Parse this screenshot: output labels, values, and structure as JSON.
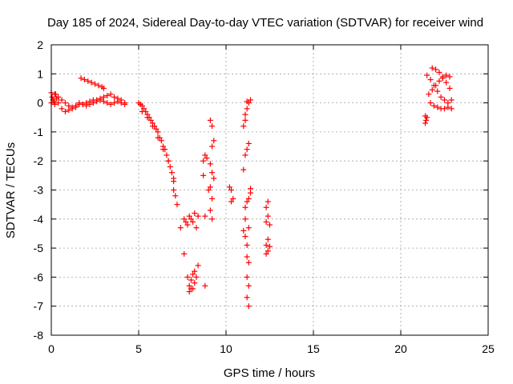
{
  "chart_data": {
    "type": "scatter",
    "title": "Day 185 of 2024, Sidereal Day-to-day VTEC variation (SDTVAR) for receiver wind",
    "xlabel": "GPS time / hours",
    "ylabel": "SDTVAR / TECUs",
    "xlim": [
      0,
      25
    ],
    "ylim": [
      -8,
      2
    ],
    "xticks": [
      "0",
      "5",
      "10",
      "15",
      "20",
      "25"
    ],
    "yticks": [
      "2",
      "1",
      "0",
      "-1",
      "-2",
      "-3",
      "-4",
      "-5",
      "-6",
      "-7",
      "-8"
    ],
    "marker": "+",
    "color": "#ff0000",
    "grid": true,
    "segments": [
      {
        "name": "early-upper",
        "points": [
          [
            0.0,
            0.35
          ],
          [
            0.2,
            0.3
          ],
          [
            0.4,
            0.2
          ],
          [
            0.6,
            0.1
          ],
          [
            0.8,
            0.0
          ],
          [
            1.0,
            -0.1
          ],
          [
            1.2,
            -0.15
          ],
          [
            1.4,
            -0.1
          ],
          [
            1.6,
            0.0
          ],
          [
            1.8,
            -0.05
          ],
          [
            2.0,
            0.0
          ],
          [
            2.2,
            0.05
          ],
          [
            2.4,
            0.1
          ],
          [
            2.6,
            0.1
          ],
          [
            2.8,
            0.15
          ],
          [
            3.0,
            0.2
          ],
          [
            3.2,
            0.25
          ],
          [
            3.4,
            0.3
          ],
          [
            3.6,
            0.2
          ],
          [
            3.8,
            0.15
          ],
          [
            4.0,
            0.1
          ],
          [
            4.2,
            0.0
          ]
        ]
      },
      {
        "name": "early-lower",
        "points": [
          [
            0.0,
            0.0
          ],
          [
            0.2,
            -0.05
          ],
          [
            0.4,
            0.0
          ],
          [
            0.6,
            -0.2
          ],
          [
            0.8,
            -0.3
          ],
          [
            1.0,
            -0.25
          ],
          [
            1.2,
            -0.2
          ],
          [
            1.4,
            -0.15
          ],
          [
            1.6,
            -0.05
          ],
          [
            1.8,
            -0.05
          ],
          [
            2.0,
            -0.1
          ],
          [
            2.2,
            -0.05
          ],
          [
            2.4,
            0.0
          ],
          [
            2.6,
            0.05
          ],
          [
            2.8,
            0.1
          ],
          [
            3.0,
            0.05
          ],
          [
            3.2,
            0.0
          ],
          [
            3.4,
            -0.05
          ],
          [
            3.6,
            0.0
          ],
          [
            3.8,
            0.05
          ],
          [
            4.0,
            0.0
          ],
          [
            4.2,
            -0.05
          ]
        ]
      },
      {
        "name": "early-small",
        "points": [
          [
            0.05,
            0.2
          ],
          [
            0.1,
            0.1
          ],
          [
            0.15,
            0.05
          ],
          [
            0.25,
            0.3
          ],
          [
            0.3,
            0.15
          ]
        ]
      },
      {
        "name": "morning-arc",
        "points": [
          [
            1.7,
            0.85
          ],
          [
            1.9,
            0.8
          ],
          [
            2.1,
            0.75
          ],
          [
            2.3,
            0.7
          ],
          [
            2.5,
            0.65
          ],
          [
            2.7,
            0.6
          ],
          [
            2.9,
            0.55
          ],
          [
            3.0,
            0.5
          ]
        ]
      },
      {
        "name": "descent-main",
        "points": [
          [
            5.0,
            0.0
          ],
          [
            5.2,
            -0.1
          ],
          [
            5.4,
            -0.3
          ],
          [
            5.6,
            -0.5
          ],
          [
            5.8,
            -0.7
          ],
          [
            6.0,
            -0.9
          ],
          [
            6.2,
            -1.2
          ],
          [
            6.4,
            -1.5
          ],
          [
            6.6,
            -1.8
          ],
          [
            6.8,
            -2.2
          ],
          [
            7.0,
            -2.7
          ],
          [
            7.2,
            -3.5
          ],
          [
            7.4,
            -4.3
          ],
          [
            7.6,
            -5.2
          ],
          [
            7.8,
            -6.0
          ],
          [
            8.0,
            -6.4
          ]
        ]
      },
      {
        "name": "descent-offset",
        "points": [
          [
            5.1,
            -0.05
          ],
          [
            5.3,
            -0.2
          ],
          [
            5.5,
            -0.4
          ],
          [
            5.7,
            -0.6
          ],
          [
            5.9,
            -0.8
          ],
          [
            6.1,
            -1.0
          ],
          [
            6.3,
            -1.3
          ],
          [
            6.5,
            -1.6
          ],
          [
            6.7,
            -2.0
          ],
          [
            6.9,
            -2.4
          ],
          [
            7.0,
            -3.0
          ],
          [
            7.1,
            -3.2
          ]
        ]
      },
      {
        "name": "descent-upper",
        "points": [
          [
            5.2,
            -0.3
          ],
          [
            5.5,
            -0.5
          ],
          [
            5.8,
            -0.8
          ],
          [
            6.1,
            -1.2
          ],
          [
            6.4,
            -1.6
          ],
          [
            6.7,
            -2.0
          ],
          [
            7.0,
            -2.6
          ]
        ]
      },
      {
        "name": "bottom-cluster",
        "points": [
          [
            7.6,
            -4.0
          ],
          [
            7.8,
            -4.2
          ],
          [
            8.0,
            -4.0
          ],
          [
            8.2,
            -3.8
          ],
          [
            8.4,
            -3.9
          ],
          [
            7.7,
            -4.1
          ],
          [
            7.9,
            -3.9
          ],
          [
            8.1,
            -4.1
          ],
          [
            8.3,
            -4.3
          ],
          [
            7.9,
            -6.3
          ],
          [
            8.0,
            -6.1
          ],
          [
            8.2,
            -5.8
          ],
          [
            8.4,
            -5.6
          ],
          [
            8.3,
            -6.0
          ],
          [
            8.1,
            -6.4
          ],
          [
            7.9,
            -6.5
          ],
          [
            8.1,
            -5.9
          ],
          [
            8.2,
            -6.2
          ]
        ]
      },
      {
        "name": "late-spikes",
        "points": [
          [
            8.8,
            -1.8
          ],
          [
            8.9,
            -1.9
          ],
          [
            8.7,
            -2.0
          ],
          [
            8.7,
            -2.5
          ],
          [
            9.0,
            -3.0
          ],
          [
            9.1,
            -3.7
          ],
          [
            8.8,
            -3.9
          ],
          [
            8.8,
            -6.3
          ],
          [
            9.1,
            -0.6
          ],
          [
            9.2,
            -0.8
          ],
          [
            9.3,
            -1.3
          ],
          [
            9.2,
            -1.5
          ],
          [
            9.1,
            -2.1
          ],
          [
            9.2,
            -2.4
          ],
          [
            9.3,
            -2.6
          ],
          [
            9.1,
            -2.9
          ],
          [
            9.2,
            -3.3
          ],
          [
            9.2,
            -4.0
          ]
        ]
      },
      {
        "name": "mid-isolated",
        "points": [
          [
            10.2,
            -2.9
          ],
          [
            10.3,
            -3.0
          ],
          [
            10.3,
            -3.4
          ],
          [
            10.4,
            -3.3
          ]
        ]
      },
      {
        "name": "column-11",
        "points": [
          [
            11.0,
            -0.8
          ],
          [
            11.1,
            -0.4
          ],
          [
            11.2,
            -0.2
          ],
          [
            11.3,
            0.0
          ],
          [
            11.4,
            0.1
          ],
          [
            11.2,
            0.05
          ],
          [
            11.1,
            -0.6
          ],
          [
            11.3,
            -1.4
          ],
          [
            11.2,
            -1.6
          ],
          [
            11.1,
            -1.8
          ],
          [
            11.0,
            -2.3
          ],
          [
            11.1,
            -3.6
          ],
          [
            11.2,
            -3.4
          ],
          [
            11.3,
            -3.3
          ],
          [
            11.4,
            -3.1
          ],
          [
            11.4,
            -2.95
          ],
          [
            11.1,
            -4.0
          ],
          [
            11.0,
            -4.4
          ],
          [
            11.1,
            -4.6
          ],
          [
            11.2,
            -4.9
          ],
          [
            11.3,
            -4.3
          ],
          [
            11.2,
            -5.3
          ],
          [
            11.3,
            -5.5
          ],
          [
            11.2,
            -6.0
          ],
          [
            11.3,
            -6.3
          ],
          [
            11.2,
            -6.7
          ],
          [
            11.3,
            -7.0
          ]
        ]
      },
      {
        "name": "column-12",
        "points": [
          [
            12.3,
            -3.6
          ],
          [
            12.4,
            -3.4
          ],
          [
            12.4,
            -3.9
          ],
          [
            12.3,
            -4.1
          ],
          [
            12.5,
            -4.2
          ],
          [
            12.4,
            -4.7
          ],
          [
            12.3,
            -4.9
          ],
          [
            12.4,
            -5.1
          ],
          [
            12.5,
            -4.95
          ],
          [
            12.3,
            -5.2
          ]
        ]
      },
      {
        "name": "late-cluster",
        "points": [
          [
            21.4,
            -0.45
          ],
          [
            21.5,
            -0.5
          ],
          [
            21.4,
            -0.7
          ],
          [
            21.45,
            -0.6
          ],
          [
            21.5,
            0.95
          ],
          [
            21.7,
            0.8
          ],
          [
            21.9,
            0.6
          ],
          [
            22.1,
            0.4
          ],
          [
            22.3,
            0.2
          ],
          [
            22.5,
            0.1
          ],
          [
            22.7,
            0.0
          ],
          [
            22.9,
            -0.2
          ],
          [
            21.6,
            0.3
          ],
          [
            21.8,
            0.45
          ],
          [
            22.0,
            0.6
          ],
          [
            22.2,
            0.75
          ],
          [
            22.4,
            0.85
          ],
          [
            22.6,
            0.95
          ],
          [
            22.8,
            0.9
          ],
          [
            21.8,
            1.2
          ],
          [
            22.0,
            1.15
          ],
          [
            22.2,
            1.05
          ],
          [
            22.4,
            0.9
          ],
          [
            22.6,
            0.7
          ],
          [
            22.8,
            0.5
          ],
          [
            21.7,
            0.0
          ],
          [
            21.9,
            -0.1
          ],
          [
            22.1,
            -0.15
          ],
          [
            22.3,
            -0.2
          ],
          [
            22.5,
            -0.2
          ],
          [
            22.7,
            -0.15
          ],
          [
            22.9,
            0.1
          ]
        ]
      }
    ]
  }
}
